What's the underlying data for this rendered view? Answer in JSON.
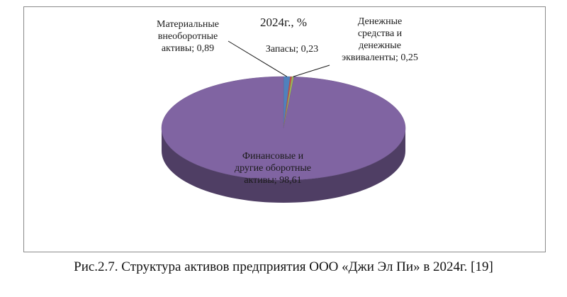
{
  "chart_data": {
    "type": "pie",
    "title": "2024г., %",
    "slices": [
      {
        "label_lines": [
          "Материальные",
          "внеоборотные",
          "активы; 0,89"
        ],
        "value": 0.89,
        "color": "#4F81BD"
      },
      {
        "label_lines": [
          "Запасы; 0,23"
        ],
        "value": 0.23,
        "color": "#C0504D"
      },
      {
        "label_lines": [
          "Денежные",
          "средства и",
          "денежные",
          "эквиваленты; 0,25"
        ],
        "value": 0.25,
        "color": "#9BBB59"
      },
      {
        "label_lines": [
          "Финансовые и",
          "другие оборотные",
          "активы; 98,61"
        ],
        "value": 98.61,
        "color": "#8064A2"
      }
    ],
    "legend": "none",
    "style": "3d"
  },
  "caption": "Рис.2.7. Структура активов предприятия ООО «Джи Эл Пи» в 2024г. [19]"
}
